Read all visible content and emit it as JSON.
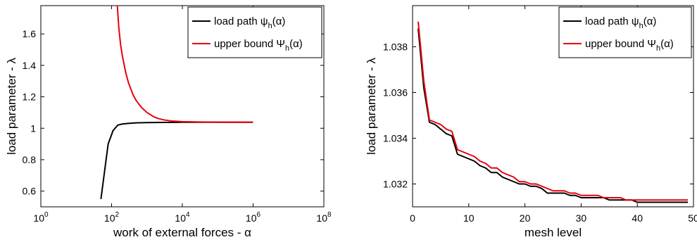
{
  "chart_data": [
    {
      "type": "line",
      "xscale": "log",
      "xlabel": "work of external forces - α",
      "ylabel": "load parameter - λ",
      "xlim": [
        1,
        100000000
      ],
      "ylim": [
        0.5,
        1.78
      ],
      "xticks": [
        1,
        100,
        10000,
        1000000,
        100000000
      ],
      "xtick_labels": [
        {
          "base": "10",
          "exp": "0"
        },
        {
          "base": "10",
          "exp": "2"
        },
        {
          "base": "10",
          "exp": "4"
        },
        {
          "base": "10",
          "exp": "6"
        },
        {
          "base": "10",
          "exp": "8"
        }
      ],
      "yticks": [
        0.6,
        0.8,
        1,
        1.2,
        1.4,
        1.6
      ],
      "ytick_labels": [
        "0.6",
        "0.8",
        "1",
        "1.2",
        "1.4",
        "1.6"
      ],
      "legend": "top-right",
      "grid": false,
      "series": [
        {
          "name": "load path ψh(α)",
          "label_main": "load path ψ",
          "label_sub": "h",
          "label_end": "(α)",
          "color": "#000000",
          "x": [
            50,
            80,
            110,
            150,
            200,
            300,
            500,
            1000,
            3000,
            10000,
            100000,
            1000000
          ],
          "y": [
            0.55,
            0.9,
            0.985,
            1.02,
            1.027,
            1.031,
            1.034,
            1.036,
            1.037,
            1.038,
            1.038,
            1.038
          ]
        },
        {
          "name": "upper bound Ψh(α)",
          "label_main": "upper bound Ψ",
          "label_sub": "h",
          "label_end": "(α)",
          "color": "#e8000b",
          "x": [
            145,
            160,
            180,
            200,
            250,
            300,
            400,
            500,
            700,
            1000,
            1500,
            2000,
            3000,
            5000,
            10000,
            30000,
            100000,
            1000000
          ],
          "y": [
            1.78,
            1.64,
            1.53,
            1.465,
            1.355,
            1.29,
            1.215,
            1.175,
            1.132,
            1.1,
            1.075,
            1.063,
            1.053,
            1.046,
            1.042,
            1.04,
            1.039,
            1.038
          ]
        }
      ]
    },
    {
      "type": "line",
      "xlabel": "mesh level",
      "ylabel": "load parameter - λ",
      "xlim": [
        0,
        50
      ],
      "ylim": [
        1.031,
        1.0398
      ],
      "xticks": [
        0,
        10,
        20,
        30,
        40,
        50
      ],
      "xtick_labels": [
        "0",
        "10",
        "20",
        "30",
        "40",
        "50"
      ],
      "yticks": [
        1.032,
        1.034,
        1.036,
        1.038
      ],
      "ytick_labels": [
        "1.032",
        "1.034",
        "1.036",
        "1.038"
      ],
      "legend": "top-right",
      "grid": false,
      "series": [
        {
          "name": "load path ψh(α)",
          "label_main": "load path ψ",
          "label_sub": "h",
          "label_end": "(α)",
          "color": "#000000",
          "x": [
            1,
            2,
            3,
            4,
            5,
            6,
            7,
            8,
            9,
            10,
            11,
            12,
            13,
            14,
            15,
            16,
            17,
            18,
            19,
            20,
            21,
            22,
            23,
            24,
            25,
            26,
            27,
            28,
            29,
            30,
            31,
            32,
            33,
            34,
            35,
            36,
            37,
            38,
            39,
            40,
            41,
            42,
            43,
            44,
            45,
            46,
            47,
            48,
            49
          ],
          "y": [
            1.0388,
            1.0362,
            1.0347,
            1.0346,
            1.0344,
            1.0342,
            1.0341,
            1.0333,
            1.0332,
            1.0331,
            1.033,
            1.0328,
            1.0327,
            1.0325,
            1.0325,
            1.0323,
            1.0322,
            1.0321,
            1.032,
            1.032,
            1.0319,
            1.0319,
            1.0318,
            1.0316,
            1.0316,
            1.0316,
            1.0316,
            1.0315,
            1.0315,
            1.0314,
            1.0314,
            1.0314,
            1.0314,
            1.0314,
            1.0313,
            1.0313,
            1.0313,
            1.0313,
            1.0313,
            1.0312,
            1.0312,
            1.0312,
            1.0312,
            1.0312,
            1.0312,
            1.0312,
            1.0312,
            1.0312,
            1.0312
          ]
        },
        {
          "name": "upper bound Ψh(α)",
          "label_main": "upper bound Ψ",
          "label_sub": "h",
          "label_end": "(α)",
          "color": "#e8000b",
          "x": [
            1,
            2,
            3,
            4,
            5,
            6,
            7,
            8,
            9,
            10,
            11,
            12,
            13,
            14,
            15,
            16,
            17,
            18,
            19,
            20,
            21,
            22,
            23,
            24,
            25,
            26,
            27,
            28,
            29,
            30,
            31,
            32,
            33,
            34,
            35,
            36,
            37,
            38,
            39,
            40,
            41,
            42,
            43,
            44,
            45,
            46,
            47,
            48,
            49
          ],
          "y": [
            1.0391,
            1.0365,
            1.0348,
            1.0347,
            1.0346,
            1.0344,
            1.0343,
            1.0335,
            1.0334,
            1.0333,
            1.0332,
            1.033,
            1.0329,
            1.0327,
            1.0327,
            1.0325,
            1.0324,
            1.0323,
            1.0321,
            1.0321,
            1.032,
            1.032,
            1.0319,
            1.0318,
            1.0317,
            1.0317,
            1.0317,
            1.0316,
            1.0316,
            1.0315,
            1.0315,
            1.0315,
            1.0315,
            1.0314,
            1.0314,
            1.0314,
            1.0314,
            1.0313,
            1.0313,
            1.0313,
            1.0313,
            1.0313,
            1.0313,
            1.0313,
            1.0313,
            1.0313,
            1.0313,
            1.0313,
            1.0313
          ]
        }
      ]
    }
  ]
}
